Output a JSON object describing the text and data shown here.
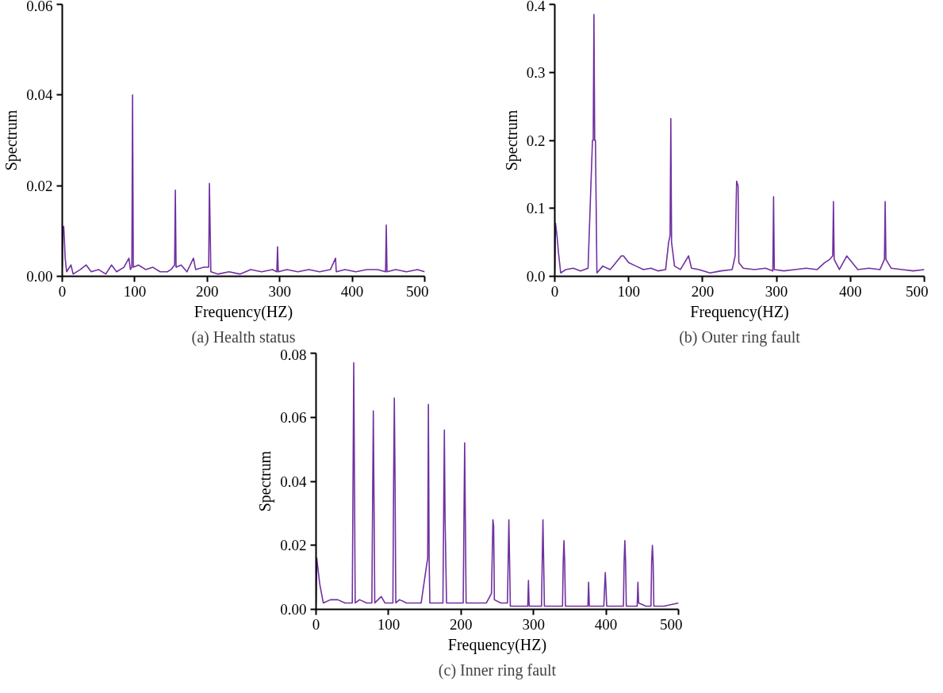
{
  "chart_data": [
    {
      "type": "line",
      "xlabel": "Frequency(HZ)",
      "ylabel": "Spectrum",
      "annotations": [
        "(a) Health status"
      ],
      "xlim": [
        0,
        500
      ],
      "ylim": [
        0,
        0.06
      ],
      "xticks": [
        0,
        100,
        200,
        300,
        400,
        500
      ],
      "yticks": [
        {
          "value": 0,
          "label": "0.00"
        },
        {
          "value": 0.02,
          "label": "0.02"
        },
        {
          "value": 0.04,
          "label": "0.04"
        },
        {
          "value": 0.06,
          "label": "0.06"
        }
      ],
      "series": [
        {
          "color": "#7030a0",
          "x": [
            0,
            1,
            2,
            3,
            4,
            6,
            12,
            15,
            25,
            33,
            40,
            50,
            60,
            68,
            75,
            85,
            92,
            94,
            96,
            97,
            98,
            105,
            115,
            125,
            135,
            145,
            150,
            155,
            156,
            157,
            164,
            172,
            181,
            184,
            195,
            202,
            203,
            205,
            215,
            230,
            245,
            260,
            275,
            290,
            296,
            297,
            298,
            310,
            325,
            340,
            355,
            370,
            377,
            378,
            390,
            405,
            420,
            435,
            446,
            447,
            448,
            460,
            475,
            490,
            500
          ],
          "values": [
            0.002,
            0.011,
            0.011,
            0.008,
            0.004,
            0.001,
            0.0025,
            0.0005,
            0.0015,
            0.0025,
            0.001,
            0.0015,
            0.0005,
            0.0025,
            0.001,
            0.002,
            0.004,
            0.0015,
            0.002,
            0.04,
            0.002,
            0.0025,
            0.0015,
            0.002,
            0.001,
            0.001,
            0.0015,
            0.0025,
            0.019,
            0.002,
            0.0025,
            0.001,
            0.004,
            0.0015,
            0.002,
            0.002,
            0.0205,
            0.001,
            0.0005,
            0.001,
            0.0005,
            0.0015,
            0.001,
            0.0015,
            0.001,
            0.0065,
            0.001,
            0.0015,
            0.001,
            0.0015,
            0.001,
            0.0015,
            0.004,
            0.001,
            0.0015,
            0.001,
            0.0015,
            0.0015,
            0.001,
            0.0113,
            0.001,
            0.0015,
            0.001,
            0.0015,
            0.001
          ]
        }
      ]
    },
    {
      "type": "line",
      "xlabel": "Frequency(HZ)",
      "ylabel": "Spectrum",
      "annotations": [
        "(b) Outer ring fault"
      ],
      "xlim": [
        0,
        500
      ],
      "ylim": [
        0,
        0.4
      ],
      "xticks": [
        0,
        100,
        200,
        300,
        400,
        500
      ],
      "yticks": [
        {
          "value": 0,
          "label": "0.0"
        },
        {
          "value": 0.1,
          "label": "0.1"
        },
        {
          "value": 0.2,
          "label": "0.2"
        },
        {
          "value": 0.3,
          "label": "0.3"
        },
        {
          "value": 0.4,
          "label": "0.4"
        }
      ],
      "series": [
        {
          "color": "#7030a0",
          "x": [
            0,
            1,
            3,
            5,
            8,
            15,
            25,
            35,
            45,
            51,
            52,
            53,
            54,
            55,
            57,
            65,
            75,
            90,
            93,
            100,
            110,
            120,
            130,
            140,
            150,
            154,
            156,
            157,
            158,
            162,
            170,
            181,
            185,
            195,
            210,
            225,
            240,
            244,
            246,
            248,
            249,
            255,
            270,
            285,
            295,
            296,
            297,
            310,
            325,
            340,
            355,
            365,
            372,
            376,
            377,
            378,
            385,
            395,
            410,
            425,
            440,
            446,
            447,
            448,
            455,
            470,
            485,
            500
          ],
          "values": [
            0.01,
            0.078,
            0.06,
            0.035,
            0.005,
            0.01,
            0.012,
            0.008,
            0.012,
            0.2,
            0.2,
            0.385,
            0.2,
            0.2,
            0.005,
            0.015,
            0.01,
            0.03,
            0.03,
            0.02,
            0.015,
            0.01,
            0.012,
            0.008,
            0.01,
            0.05,
            0.06,
            0.232,
            0.05,
            0.015,
            0.01,
            0.03,
            0.012,
            0.01,
            0.005,
            0.008,
            0.01,
            0.03,
            0.14,
            0.133,
            0.02,
            0.012,
            0.01,
            0.012,
            0.008,
            0.117,
            0.01,
            0.008,
            0.01,
            0.012,
            0.01,
            0.02,
            0.025,
            0.03,
            0.11,
            0.025,
            0.01,
            0.03,
            0.01,
            0.012,
            0.01,
            0.025,
            0.11,
            0.025,
            0.012,
            0.01,
            0.008,
            0.01
          ]
        }
      ]
    },
    {
      "type": "line",
      "xlabel": "Frequency(HZ)",
      "ylabel": "Spectrum",
      "annotations": [
        "(c) Inner ring fault"
      ],
      "xlim": [
        0,
        500
      ],
      "ylim": [
        0,
        0.08
      ],
      "xticks": [
        0,
        100,
        200,
        300,
        400,
        500
      ],
      "yticks": [
        {
          "value": 0,
          "label": "0.00"
        },
        {
          "value": 0.02,
          "label": "0.02"
        },
        {
          "value": 0.04,
          "label": "0.04"
        },
        {
          "value": 0.06,
          "label": "0.06"
        },
        {
          "value": 0.08,
          "label": "0.08"
        }
      ],
      "series": [
        {
          "color": "#7030a0",
          "x": [
            0,
            1,
            3,
            5,
            10,
            20,
            30,
            40,
            50,
            51,
            52,
            53,
            54,
            60,
            70,
            77,
            78,
            79,
            80,
            81,
            90,
            95,
            100,
            106,
            107,
            108,
            109,
            110,
            115,
            125,
            135,
            145,
            152,
            154,
            155,
            156,
            157,
            165,
            175,
            176,
            177,
            178,
            180,
            190,
            203,
            204,
            205,
            206,
            207,
            215,
            225,
            235,
            242,
            244,
            245,
            246,
            255,
            264,
            265,
            266,
            267,
            268,
            280,
            292,
            293,
            294,
            305,
            311,
            312,
            313,
            314,
            315,
            325,
            340,
            341,
            342,
            343,
            344,
            360,
            375,
            376,
            377,
            390,
            397,
            398,
            399,
            400,
            401,
            415,
            424,
            425,
            426,
            427,
            428,
            435,
            443,
            444,
            445,
            455,
            462,
            463,
            464,
            465,
            466,
            480,
            500
          ],
          "values": [
            0.002,
            0.016,
            0.012,
            0.008,
            0.002,
            0.003,
            0.003,
            0.002,
            0.002,
            0.04,
            0.077,
            0.04,
            0.002,
            0.003,
            0.002,
            0.002,
            0.033,
            0.062,
            0.033,
            0.002,
            0.004,
            0.002,
            0.002,
            0.002,
            0.04,
            0.066,
            0.04,
            0.002,
            0.003,
            0.002,
            0.002,
            0.002,
            0.013,
            0.016,
            0.064,
            0.016,
            0.002,
            0.002,
            0.002,
            0.028,
            0.056,
            0.028,
            0.002,
            0.002,
            0.002,
            0.027,
            0.052,
            0.027,
            0.002,
            0.002,
            0.002,
            0.002,
            0.005,
            0.028,
            0.026,
            0.003,
            0.002,
            0.002,
            0.015,
            0.028,
            0.015,
            0.001,
            0.001,
            0.001,
            0.009,
            0.001,
            0.001,
            0.001,
            0.015,
            0.028,
            0.015,
            0.001,
            0.001,
            0.001,
            0.015,
            0.0215,
            0.015,
            0.001,
            0.001,
            0.001,
            0.0085,
            0.001,
            0.001,
            0.001,
            0.0065,
            0.0115,
            0.0065,
            0.001,
            0.001,
            0.001,
            0.015,
            0.0215,
            0.015,
            0.001,
            0.001,
            0.001,
            0.0085,
            0.002,
            0.001,
            0.001,
            0.015,
            0.02,
            0.015,
            0.001,
            0.001,
            0.002
          ]
        }
      ]
    }
  ]
}
